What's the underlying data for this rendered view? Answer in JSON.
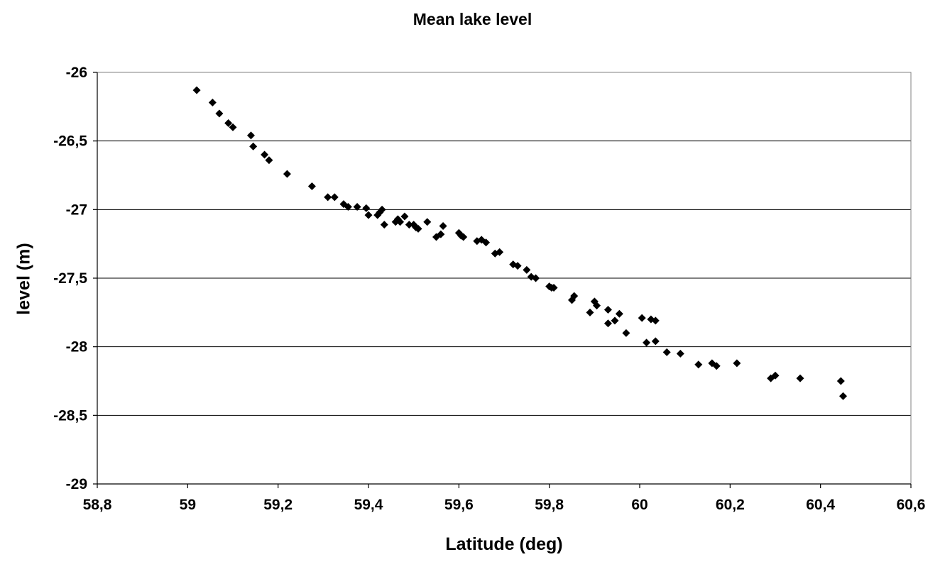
{
  "chart_data": {
    "type": "scatter",
    "title": "Mean lake level",
    "xlabel": "Latitude (deg)",
    "ylabel": "level (m)",
    "xlim": [
      58.8,
      60.6
    ],
    "ylim": [
      -29,
      -26
    ],
    "x_ticks": [
      58.8,
      59.0,
      59.2,
      59.4,
      59.6,
      59.8,
      60.0,
      60.2,
      60.4,
      60.6
    ],
    "x_tick_labels": [
      "58,8",
      "59",
      "59,2",
      "59,4",
      "59,6",
      "59,8",
      "60",
      "60,2",
      "60,4",
      "60,6"
    ],
    "y_ticks": [
      -26,
      -26.5,
      -27,
      -27.5,
      -28,
      -28.5,
      -29
    ],
    "y_tick_labels": [
      "-26",
      "-26,5",
      "-27",
      "-27,5",
      "-28",
      "-28,5",
      "-29"
    ],
    "grid": "horizontal",
    "marker": "diamond",
    "marker_color": "#000000",
    "points": [
      [
        59.02,
        -26.13
      ],
      [
        59.055,
        -26.22
      ],
      [
        59.07,
        -26.3
      ],
      [
        59.09,
        -26.37
      ],
      [
        59.1,
        -26.4
      ],
      [
        59.14,
        -26.46
      ],
      [
        59.145,
        -26.54
      ],
      [
        59.17,
        -26.6
      ],
      [
        59.18,
        -26.64
      ],
      [
        59.22,
        -26.74
      ],
      [
        59.275,
        -26.83
      ],
      [
        59.31,
        -26.91
      ],
      [
        59.325,
        -26.91
      ],
      [
        59.345,
        -26.96
      ],
      [
        59.355,
        -26.98
      ],
      [
        59.375,
        -26.98
      ],
      [
        59.395,
        -26.99
      ],
      [
        59.4,
        -27.04
      ],
      [
        59.42,
        -27.04
      ],
      [
        59.425,
        -27.02
      ],
      [
        59.43,
        -27.0
      ],
      [
        59.435,
        -27.11
      ],
      [
        59.46,
        -27.09
      ],
      [
        59.465,
        -27.07
      ],
      [
        59.47,
        -27.09
      ],
      [
        59.48,
        -27.05
      ],
      [
        59.49,
        -27.11
      ],
      [
        59.5,
        -27.11
      ],
      [
        59.505,
        -27.13
      ],
      [
        59.51,
        -27.14
      ],
      [
        59.53,
        -27.09
      ],
      [
        59.55,
        -27.2
      ],
      [
        59.56,
        -27.18
      ],
      [
        59.565,
        -27.12
      ],
      [
        59.6,
        -27.17
      ],
      [
        59.605,
        -27.19
      ],
      [
        59.61,
        -27.2
      ],
      [
        59.64,
        -27.23
      ],
      [
        59.65,
        -27.22
      ],
      [
        59.66,
        -27.24
      ],
      [
        59.68,
        -27.32
      ],
      [
        59.69,
        -27.31
      ],
      [
        59.72,
        -27.4
      ],
      [
        59.73,
        -27.41
      ],
      [
        59.75,
        -27.44
      ],
      [
        59.76,
        -27.49
      ],
      [
        59.77,
        -27.5
      ],
      [
        59.8,
        -27.56
      ],
      [
        59.805,
        -27.57
      ],
      [
        59.81,
        -27.57
      ],
      [
        59.85,
        -27.66
      ],
      [
        59.855,
        -27.63
      ],
      [
        59.89,
        -27.75
      ],
      [
        59.9,
        -27.67
      ],
      [
        59.905,
        -27.7
      ],
      [
        59.93,
        -27.73
      ],
      [
        59.93,
        -27.83
      ],
      [
        59.945,
        -27.81
      ],
      [
        59.955,
        -27.76
      ],
      [
        59.97,
        -27.9
      ],
      [
        60.005,
        -27.79
      ],
      [
        60.015,
        -27.97
      ],
      [
        60.025,
        -27.8
      ],
      [
        60.035,
        -27.81
      ],
      [
        60.035,
        -27.96
      ],
      [
        60.06,
        -28.04
      ],
      [
        60.09,
        -28.05
      ],
      [
        60.13,
        -28.13
      ],
      [
        60.16,
        -28.12
      ],
      [
        60.17,
        -28.14
      ],
      [
        60.215,
        -28.12
      ],
      [
        60.29,
        -28.23
      ],
      [
        60.3,
        -28.21
      ],
      [
        60.355,
        -28.23
      ],
      [
        60.445,
        -28.25
      ],
      [
        60.45,
        -28.36
      ]
    ]
  }
}
